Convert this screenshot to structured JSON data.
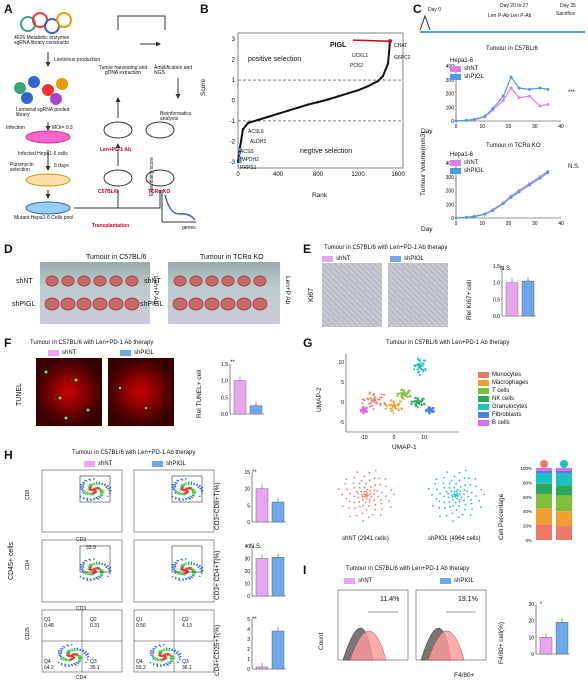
{
  "colors": {
    "purple": "#e07ef0",
    "blue": "#4a9de9",
    "nt": "#e8a5f2",
    "pigl": "#6ea7ea",
    "arrow": "#d0021b",
    "teal": "#19c2c3",
    "salmon": "#f07a6a"
  },
  "panels": [
    "A",
    "B",
    "C",
    "D",
    "E",
    "F",
    "G",
    "H",
    "I"
  ],
  "A": {
    "top": "4626 Metabolic enzymes sgRNA library constructs",
    "lenti": "Lentivirus production",
    "lib": "Lentiviral sgRNA pooled library",
    "infection": "Infection",
    "moi": "MOI= 0.3",
    "infected": "Infected Hepa1-6 cells",
    "puro": "Puromycin selection",
    "days": "6 days",
    "mutant": "Mutant Hepa1-6 Cells pool",
    "harvest": "Tumor harvesting and gDNA extraction",
    "len": "Len+PD-1 Ab",
    "c57": "C57BL/6",
    "tcr": "TCRα KO",
    "transplant": "Transplantation",
    "amp": "Amplification and NGS",
    "bio": "Bioinformatics analysis",
    "ess": "Essentiality score",
    "genes": "genes"
  },
  "B": {
    "ylabel": "Score",
    "xlabel": "Rank",
    "pos": "positive selection",
    "neg": "negtive selection",
    "highlight": "PIGL",
    "top_genes": [
      "UCKL1",
      "PCK2",
      "CHAT",
      "G6PC2"
    ],
    "bottom_genes": [
      "ACSL6",
      "ALDH3",
      "ACSS",
      "IMPDH2",
      "PRPS1"
    ],
    "xticks": [
      "0",
      "400",
      "800",
      "1200",
      "1600"
    ],
    "yticks": [
      "3",
      "2",
      "1",
      "0",
      "-1",
      "-2",
      "-3"
    ]
  },
  "C": {
    "day0": "Day 0",
    "len": "Len",
    "day20": "Day 20 to 27",
    "paren": "P-Ab Len P-Ab",
    "day35": "Day 35",
    "sac": "Sacrifice",
    "title1": "Tumour in C57BL/6",
    "title2": "Tumour in TCRα KO",
    "cell": "Hepa1-6",
    "ylabel": "Tumour Volume(mm3)",
    "xlabel": "Day",
    "sig1": "***",
    "sig2": "N.S.",
    "xticks": [
      "0",
      "10",
      "20",
      "30",
      "40"
    ],
    "yticks1": [
      "0",
      "100",
      "200",
      "300",
      "400"
    ],
    "yticks2": [
      "0",
      "100",
      "200",
      "300",
      "400"
    ],
    "legend": [
      "shNT",
      "shPIGL"
    ]
  },
  "chart_data": [
    {
      "type": "scatter",
      "title": "",
      "xlabel": "Rank",
      "ylabel": "Score",
      "xlim": [
        0,
        1650
      ],
      "ylim": [
        -3.3,
        3.3
      ],
      "x": [
        0,
        20,
        50,
        100,
        200,
        300,
        400,
        500,
        600,
        700,
        800,
        900,
        1000,
        1100,
        1200,
        1300,
        1400,
        1450,
        1500,
        1520
      ],
      "y": [
        -3.0,
        -2.3,
        -1.4,
        -1.1,
        -0.95,
        -0.8,
        -0.65,
        -0.5,
        -0.35,
        -0.2,
        -0.08,
        0.05,
        0.2,
        0.35,
        0.5,
        0.7,
        0.95,
        1.2,
        1.8,
        2.9
      ]
    },
    {
      "type": "line",
      "title": "Tumour in C57BL/6",
      "xlabel": "Day",
      "ylabel": "Tumour Volume(mm3)",
      "ylim": [
        0,
        400
      ],
      "x": [
        0,
        4,
        7,
        11,
        14,
        18,
        21,
        24,
        28,
        32,
        35
      ],
      "series": [
        {
          "name": "shNT",
          "values": [
            0,
            5,
            10,
            30,
            80,
            150,
            240,
            170,
            180,
            110,
            120
          ]
        },
        {
          "name": "shPIGL",
          "values": [
            0,
            5,
            12,
            35,
            90,
            180,
            320,
            240,
            230,
            240,
            230
          ]
        }
      ]
    },
    {
      "type": "line",
      "title": "Tumour in TCRα KO",
      "xlabel": "Day",
      "ylabel": "Tumour Volume(mm3)",
      "ylim": [
        0,
        400
      ],
      "x": [
        0,
        4,
        7,
        11,
        14,
        18,
        21,
        24,
        28,
        32,
        35
      ],
      "series": [
        {
          "name": "shNT",
          "values": [
            0,
            5,
            12,
            30,
            60,
            110,
            160,
            200,
            250,
            300,
            340
          ]
        },
        {
          "name": "shPIGL",
          "values": [
            0,
            5,
            10,
            28,
            55,
            105,
            150,
            190,
            240,
            290,
            330
          ]
        }
      ]
    },
    {
      "type": "bar",
      "title": "",
      "ylabel": "Rel Ki67+ cell",
      "categories": [
        "shNT",
        "shPIGL"
      ],
      "values": [
        1.0,
        1.05
      ],
      "ylim": [
        0,
        1.5
      ]
    },
    {
      "type": "bar",
      "title": "",
      "ylabel": "Rel TUNEL+ cell",
      "categories": [
        "shNT",
        "shPIGL"
      ],
      "values": [
        1.0,
        0.25
      ],
      "ylim": [
        0,
        1.5
      ]
    },
    {
      "type": "bar",
      "title": "",
      "ylabel": "CD3+CD8+T(%)",
      "categories": [
        "shNT",
        "shPIGL"
      ],
      "values": [
        10,
        6
      ],
      "ylim": [
        0,
        15
      ]
    },
    {
      "type": "bar",
      "title": "",
      "ylabel": "CD3+ CD4+T(%)",
      "categories": [
        "shNT",
        "shPIGL"
      ],
      "values": [
        30,
        31
      ],
      "ylim": [
        0,
        40
      ]
    },
    {
      "type": "bar",
      "title": "",
      "ylabel": "CD4+CD25+T(%)",
      "categories": [
        "shNT",
        "shPIGL"
      ],
      "values": [
        0.2,
        3.8
      ],
      "ylim": [
        0,
        5
      ]
    },
    {
      "type": "bar",
      "title": "",
      "ylabel": "F4/80+ cell(%)",
      "categories": [
        "shNT",
        "shPIGL"
      ],
      "values": [
        10,
        19
      ],
      "ylim": [
        0,
        30
      ]
    }
  ],
  "D": {
    "t1": "Tumour in C57BL/6",
    "t2": "Tumour in TCRα KO",
    "r1": "shNT",
    "r2": "shPIGL",
    "side": "Len+P Ab"
  },
  "E": {
    "title": "Tumour in C57BL/6 with Len+PD-1 Ab therapy",
    "nt": "shNT",
    "pigl": "shPIGL",
    "row": "Ki67",
    "ylabel": "Rel Ki67+ cell",
    "sig": "N.S.",
    "yticks": [
      "0.0",
      "0.5",
      "1.0",
      "1.5"
    ]
  },
  "F": {
    "title": "Tumour in C57BL/6 with Len+PD-1 Ab therapy",
    "nt": "shNT",
    "pigl": "shPIGL",
    "row": "TUNEL",
    "ylabel": "Rel TUNEL+ cell",
    "sig": "**",
    "yticks": [
      "0.0",
      "0.5",
      "1.0",
      "1.5"
    ]
  },
  "G": {
    "title": "Tumour in C57BL/6 with Len+PD-1 Ab therapy",
    "xlabel": "UMAP-1",
    "ylabel": "UMAP-2",
    "legend": [
      "Monocytes",
      "Macrophages",
      "T cells",
      "NK cells",
      "Granulocytes",
      "Fibroblasts",
      "B cells"
    ],
    "legend_colors": [
      "#f07a6a",
      "#f0a030",
      "#7fbf3a",
      "#2aa85a",
      "#19c2c3",
      "#4a7ee9",
      "#e06ae0"
    ],
    "nt": "shNT (2941 cells)",
    "pigl": "shPIGL (4964 cells)",
    "ylabel2": "Cell Percentage",
    "xticks": [
      "-10",
      "0",
      "10"
    ],
    "yticks": [
      "10",
      "5",
      "0",
      "-5"
    ],
    "pct": [
      "100%",
      "80%",
      "60%",
      "40%",
      "20%",
      "0%"
    ],
    "bars": {
      "shNT": [
        0.22,
        0.22,
        0.2,
        0.14,
        0.14,
        0.04,
        0.04
      ],
      "shPIGL": [
        0.2,
        0.2,
        0.22,
        0.14,
        0.16,
        0.04,
        0.04
      ]
    }
  },
  "H": {
    "title": "Tumour in C57BL/6 with Len+PD-1 Ab therapy",
    "nt": "shNT",
    "pigl": "shPIGL",
    "side": "CD45+ cells",
    "r1y": "CD8",
    "r1x": "CD3",
    "r2y": "CD4",
    "r2x": "CD3",
    "r3y": "CD25",
    "r3x": "CD4",
    "g1": "33.9",
    "q3a": [
      "Q1",
      "Q2",
      "Q3",
      "Q4"
    ],
    "q3v1": [
      "0.48",
      "0.31",
      "35.1",
      "64.2"
    ],
    "q3v2": [
      "0.56",
      "4.13",
      "36.1",
      "59.2"
    ],
    "bar1": {
      "ylabel": "CD3+CD8+T(%)",
      "sig": "**",
      "yticks": [
        "0",
        "5",
        "10",
        "15"
      ]
    },
    "bar2": {
      "ylabel": "CD3+ CD4+T(%)",
      "sig": "N.S.",
      "yticks": [
        "0",
        "10",
        "20",
        "30",
        "40"
      ]
    },
    "bar3": {
      "ylabel": "CD4+CD25+T(%)",
      "sig": "**",
      "yticks": [
        "0",
        "1",
        "2",
        "3",
        "4",
        "5"
      ]
    }
  },
  "I": {
    "title": "Tumour in C57BL/6 with Len+PD-1 Ab therapy",
    "nt": "shNT",
    "pigl": "shPIGL",
    "p1": "11.4%",
    "p2": "19.1%",
    "ylabel": "Count",
    "xlabel": "F4/80+",
    "bylabel": "F4/80+ cell(%)",
    "sig": "*",
    "yticks": [
      "0",
      "10",
      "20",
      "30"
    ]
  }
}
